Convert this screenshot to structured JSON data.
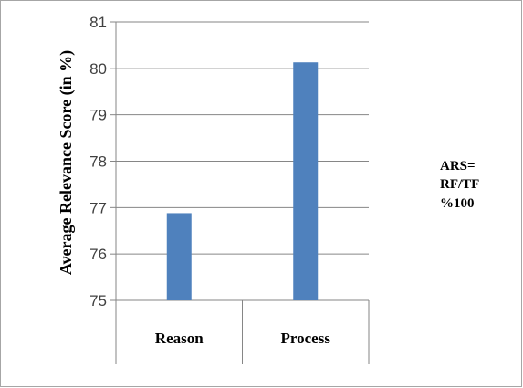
{
  "chart_data": {
    "type": "bar",
    "categories": [
      "Reason",
      "Process"
    ],
    "values": [
      76.88,
      80.13
    ],
    "ylabel": "Average Relevance Score (in %)",
    "ylim": [
      75,
      81
    ],
    "yticks": [
      75,
      76,
      77,
      78,
      79,
      80,
      81
    ],
    "grid": true,
    "bar_color": "#4F81BD",
    "annotation": [
      "ARS=",
      "RF/TF",
      "%100"
    ]
  }
}
